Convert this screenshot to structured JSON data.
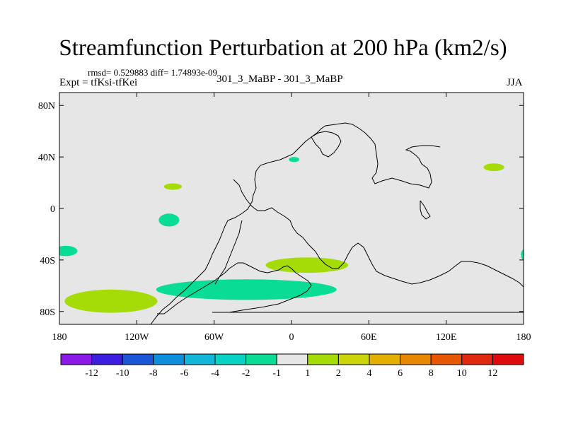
{
  "chart_data": {
    "type": "contour-map",
    "title": "Streamfunction Perturbation at 200 hPa (km2/s)",
    "stats_line": "rmsd= 0.529883 diff= 1.74893e-09",
    "experiment_label": "Expt = tfKsi-tfKei",
    "runs_label": "301_3_MaBP - 301_3_MaBP",
    "season": "JJA",
    "x_axis": {
      "range": [
        -180,
        180
      ],
      "ticks": [
        -180,
        -120,
        -60,
        0,
        60,
        120,
        180
      ],
      "tick_labels": [
        "180",
        "120W",
        "60W",
        "0",
        "60E",
        "120E",
        "180"
      ]
    },
    "y_axis": {
      "range": [
        -90,
        90
      ],
      "ticks": [
        80,
        40,
        0,
        -40,
        -80
      ],
      "tick_labels": [
        "80N",
        "40N",
        "0",
        "40S",
        "80S"
      ]
    },
    "background_color": "#e6e6e6",
    "levels": [
      -12,
      -10,
      -8,
      -6,
      -4,
      -2,
      -1,
      1,
      2,
      4,
      6,
      8,
      10,
      12
    ],
    "level_labels": [
      "-12",
      "-10",
      "-8",
      "-6",
      "-4",
      "-2",
      "-1",
      "1",
      "2",
      "4",
      "6",
      "8",
      "10",
      "12"
    ],
    "palette": [
      "#8b19e8",
      "#3c1ee0",
      "#1c56d8",
      "#0e8fdc",
      "#12b6d9",
      "#07d3c4",
      "#08dc95",
      "#e6e6e6",
      "#a5dc08",
      "#cbd508",
      "#e3b000",
      "#e88800",
      "#e55700",
      "#e02a10",
      "#de0c0c"
    ],
    "anomalies": [
      {
        "name": "positive-south-pacific",
        "level_band": "1 to 2",
        "color": "#a5dc08",
        "center": [
          -140,
          -72
        ],
        "radius": [
          36,
          9
        ]
      },
      {
        "name": "positive-south-atlantic",
        "level_band": "1 to 2",
        "color": "#a5dc08",
        "center": [
          12,
          -44
        ],
        "radius": [
          32,
          6
        ]
      },
      {
        "name": "positive-north-pacific",
        "level_band": "1 to 2",
        "color": "#a5dc08",
        "center": [
          157,
          32
        ],
        "radius": [
          8,
          3
        ]
      },
      {
        "name": "positive-east-pacific",
        "level_band": "1 to 2",
        "color": "#a5dc08",
        "center": [
          -92,
          17
        ],
        "radius": [
          7,
          2.5
        ]
      },
      {
        "name": "negative-south-pacific-band",
        "level_band": "-2 to -1",
        "color": "#08dc95",
        "center": [
          -35,
          -63
        ],
        "radius": [
          70,
          8
        ]
      },
      {
        "name": "negative-east-pacific",
        "level_band": "-2 to -1",
        "color": "#08dc95",
        "center": [
          -95,
          -9
        ],
        "radius": [
          8,
          5
        ]
      },
      {
        "name": "negative-dateline",
        "level_band": "-2 to -1",
        "color": "#08dc95",
        "center": [
          -175,
          -33
        ],
        "radius": [
          9,
          4
        ]
      },
      {
        "name": "negative-europe",
        "level_band": "-2 to -1",
        "color": "#08dc95",
        "center": [
          2,
          38
        ],
        "radius": [
          4,
          2
        ]
      },
      {
        "name": "negative-east-edge",
        "level_band": "-2 to -1",
        "color": "#08dc95",
        "center": [
          180,
          -36
        ],
        "radius": [
          2,
          4
        ]
      }
    ]
  }
}
